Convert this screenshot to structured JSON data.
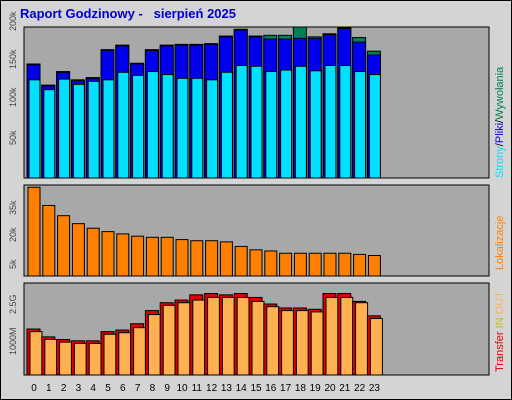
{
  "title": "Raport Godzinowy -   sierpień 2025",
  "colors": {
    "pages": "#00e0ff",
    "files": "#0000ee",
    "hits": "#00805a",
    "sites": "#ff8000",
    "kbin": "#e00000",
    "kbout": "#ffb050",
    "background": "#d4d4d4",
    "panel": "#a8a8a8"
  },
  "chart_data": [
    {
      "type": "bar",
      "panel": "traffic",
      "categories": [
        "0",
        "1",
        "2",
        "3",
        "4",
        "5",
        "6",
        "7",
        "8",
        "9",
        "10",
        "11",
        "12",
        "13",
        "14",
        "15",
        "16",
        "17",
        "18",
        "19",
        "20",
        "21",
        "22",
        "23"
      ],
      "ylim": [
        0,
        200000
      ],
      "yticks": [
        "50k",
        "100k",
        "150k",
        "200k"
      ],
      "legend": [
        "Strony",
        "/",
        "Pliki",
        "/",
        "Wywołania"
      ],
      "series": [
        {
          "name": "Wywołania",
          "values": [
            151000,
            123000,
            141000,
            130000,
            133000,
            170000,
            176000,
            152000,
            170000,
            176000,
            177000,
            177000,
            178000,
            188000,
            197000,
            188000,
            189000,
            189000,
            200000,
            187000,
            191000,
            199000,
            186000,
            168000
          ]
        },
        {
          "name": "Pliki",
          "values": [
            150000,
            122000,
            140000,
            129000,
            132000,
            169000,
            175000,
            151000,
            169000,
            175000,
            176000,
            176000,
            177000,
            187000,
            196000,
            187000,
            184000,
            184000,
            185000,
            185000,
            190000,
            198000,
            180000,
            163000
          ]
        },
        {
          "name": "Strony",
          "values": [
            130000,
            117000,
            131000,
            124000,
            128000,
            130000,
            140000,
            136000,
            141000,
            137000,
            132000,
            132000,
            130000,
            140000,
            149000,
            148000,
            141000,
            143000,
            148000,
            142000,
            149000,
            149000,
            141000,
            137000
          ]
        }
      ]
    },
    {
      "type": "bar",
      "panel": "sites",
      "categories": [
        "0",
        "1",
        "2",
        "3",
        "4",
        "5",
        "6",
        "7",
        "8",
        "9",
        "10",
        "11",
        "12",
        "13",
        "14",
        "15",
        "16",
        "17",
        "18",
        "19",
        "20",
        "21",
        "22",
        "23"
      ],
      "ylim": [
        0,
        40000
      ],
      "yticks": [
        "5k",
        "20k",
        "35k"
      ],
      "legend": [
        "Lokalizacje"
      ],
      "series": [
        {
          "name": "Lokalizacje",
          "values": [
            39000,
            31000,
            26500,
            23000,
            21000,
            19500,
            18500,
            17500,
            17000,
            17000,
            16000,
            15500,
            15500,
            15000,
            13000,
            11500,
            11000,
            10000,
            10000,
            10000,
            10000,
            10000,
            9500,
            9000
          ]
        }
      ]
    },
    {
      "type": "bar",
      "panel": "transfer",
      "categories": [
        "0",
        "1",
        "2",
        "3",
        "4",
        "5",
        "6",
        "7",
        "8",
        "9",
        "10",
        "11",
        "12",
        "13",
        "14",
        "15",
        "16",
        "17",
        "18",
        "19",
        "20",
        "21",
        "22",
        "23"
      ],
      "ylim": [
        0,
        3500
      ],
      "yticks": [
        "1000M",
        "2.5G"
      ],
      "legend": [
        "Transfer",
        "IN",
        "OUT"
      ],
      "series": [
        {
          "name": "IN",
          "values": [
            1750,
            1450,
            1350,
            1300,
            1300,
            1650,
            1710,
            1950,
            2450,
            2750,
            2850,
            3050,
            3100,
            3050,
            3100,
            2950,
            2700,
            2550,
            2550,
            2500,
            3100,
            3100,
            2800,
            2250
          ]
        },
        {
          "name": "OUT",
          "values": [
            1650,
            1350,
            1250,
            1200,
            1200,
            1550,
            1610,
            1800,
            2300,
            2650,
            2750,
            2850,
            2950,
            2950,
            2950,
            2800,
            2600,
            2450,
            2450,
            2400,
            2950,
            2950,
            2750,
            2150
          ]
        }
      ]
    }
  ]
}
